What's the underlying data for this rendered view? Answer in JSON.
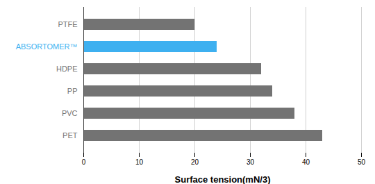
{
  "chart_data": {
    "type": "bar",
    "orientation": "horizontal",
    "categories": [
      "PTFE",
      "ABSORTOMER™",
      "HDPE",
      "PP",
      "PVC",
      "PET"
    ],
    "values": [
      20,
      24,
      32,
      34,
      38,
      43
    ],
    "colors": [
      "#737373",
      "#3eb0f0",
      "#737373",
      "#737373",
      "#737373",
      "#737373"
    ],
    "x_label": "Surface tension(mN/3)",
    "xlim": [
      0,
      50
    ],
    "xticks": [
      0,
      10,
      20,
      30,
      40,
      50
    ],
    "grid": true
  }
}
